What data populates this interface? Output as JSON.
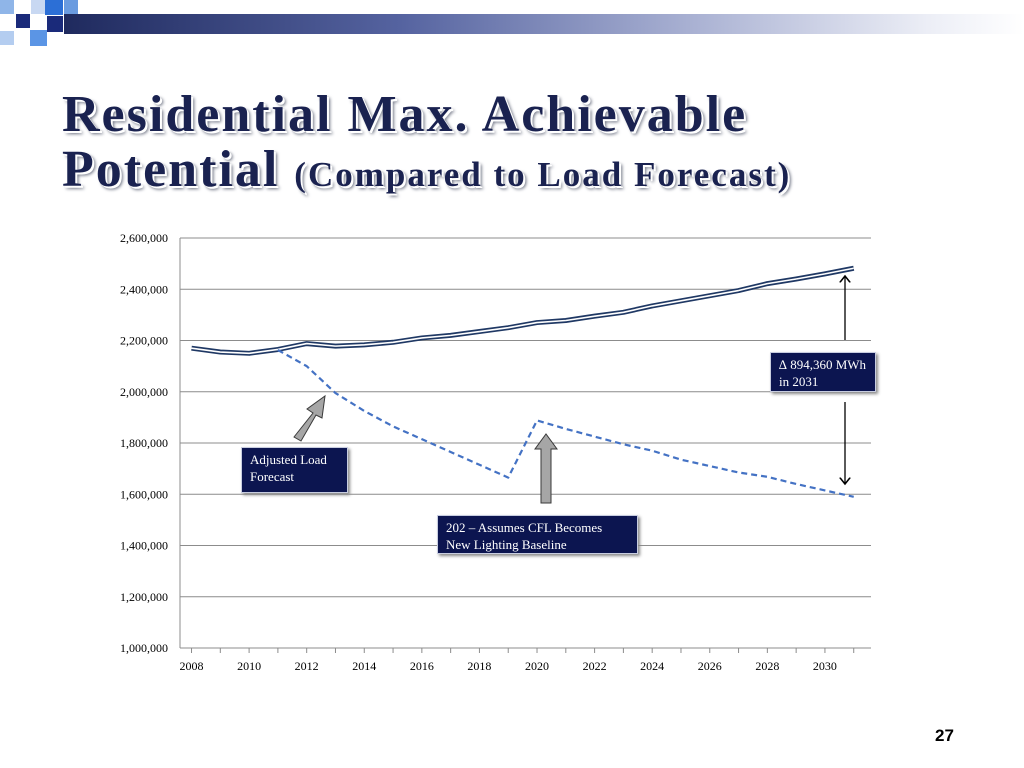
{
  "slide": {
    "title_line1": "Residential Max. Achievable",
    "title_line2_main": "Potential",
    "title_line2_sub": "(Compared to Load Forecast)",
    "page_number": "27"
  },
  "callouts": {
    "adjusted": "Adjusted Load Forecast",
    "cfl": "202 – Assumes CFL Becomes New Lighting Baseline",
    "delta": "∆  894,360 MWh in 2031"
  },
  "colors": {
    "title": "#1a2250",
    "load_forecast": "#1f3864",
    "adjusted": "#4472c4",
    "callout_bg": "#0c1550",
    "arrow_fill": "#a6a6a6"
  },
  "chart_data": {
    "type": "line",
    "title": "",
    "xlabel": "",
    "ylabel": "",
    "x": [
      2008,
      2009,
      2010,
      2011,
      2012,
      2013,
      2014,
      2015,
      2016,
      2017,
      2018,
      2019,
      2020,
      2021,
      2022,
      2023,
      2024,
      2025,
      2026,
      2027,
      2028,
      2029,
      2030,
      2031
    ],
    "xlim": [
      2007.6,
      2031.6
    ],
    "xticks": [
      2008,
      2010,
      2012,
      2014,
      2016,
      2018,
      2020,
      2022,
      2024,
      2026,
      2028,
      2030
    ],
    "ylim": [
      1000000,
      2600000
    ],
    "yticks": [
      1000000,
      1200000,
      1400000,
      1600000,
      1800000,
      2000000,
      2200000,
      2400000,
      2600000
    ],
    "ytick_labels": [
      "1,000,000",
      "1,200,000",
      "1,400,000",
      "1,600,000",
      "1,800,000",
      "2,000,000",
      "2,200,000",
      "2,400,000",
      "2,600,000"
    ],
    "grid": "horizontal",
    "legend": "none",
    "series": [
      {
        "style": "solid-double",
        "values": [
          2170000,
          2155000,
          2150000,
          2165000,
          2188000,
          2178000,
          2183000,
          2193000,
          2210000,
          2220000,
          2235000,
          2250000,
          2270000,
          2278000,
          2295000,
          2310000,
          2335000,
          2355000,
          2375000,
          2395000,
          2422000,
          2440000,
          2460000,
          2482000
        ]
      },
      {
        "style": "dashed",
        "start_index": 3,
        "values": [
          null,
          null,
          null,
          2163000,
          2100000,
          1995000,
          1925000,
          1865000,
          1815000,
          1765000,
          1715000,
          1665000,
          1888000,
          1855000,
          1825000,
          1795000,
          1770000,
          1735000,
          1710000,
          1685000,
          1668000,
          1640000,
          1615000,
          1590000
        ]
      }
    ]
  }
}
